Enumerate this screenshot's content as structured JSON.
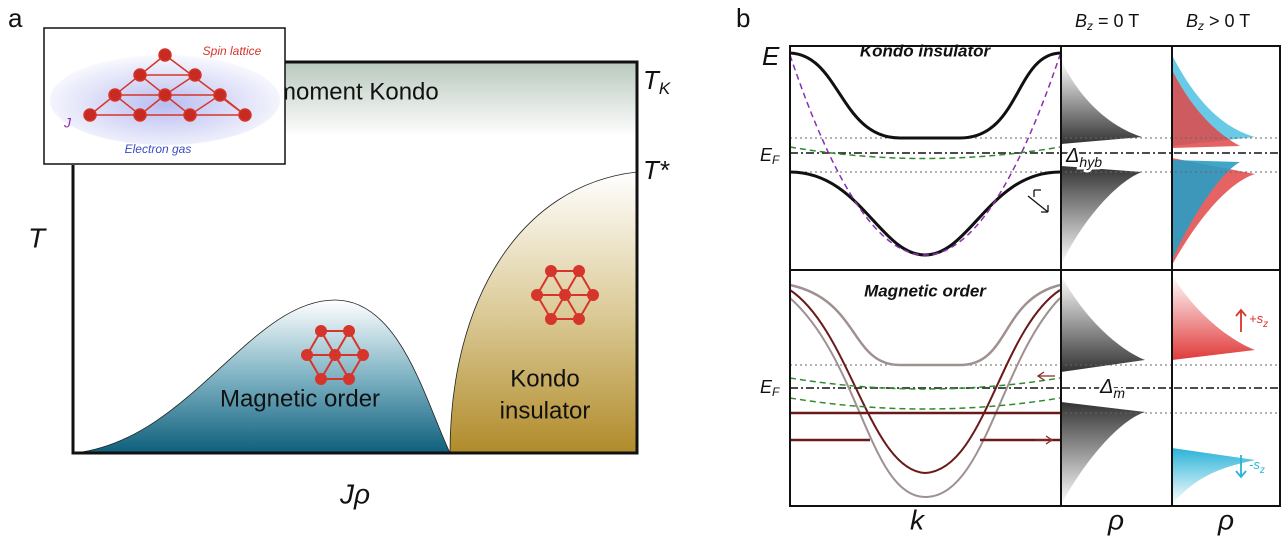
{
  "panel_a": {
    "label": "a",
    "inset": {
      "spin_lattice": "Spin lattice",
      "electron_gas": "Electron gas",
      "coupling": "J"
    },
    "region_top": "Single-moment Kondo",
    "region_magnetic": "Magnetic order",
    "region_kondo": [
      "Kondo",
      "insulator"
    ],
    "t_k": {
      "main": "T",
      "sub": "K"
    },
    "t_star": "T*",
    "y_axis": "T",
    "x_axis": "Jρ"
  },
  "panel_b": {
    "label": "b",
    "col_zero": {
      "main": "B",
      "sub": "z",
      "rest": " = 0 T"
    },
    "col_pos": {
      "main": "B",
      "sub": "z",
      "rest": " > 0 T"
    },
    "energy": "E",
    "top_title": "Kondo insulator",
    "top_ef": {
      "main": "E",
      "sub": "F"
    },
    "gap_hyb": {
      "main": "Δ",
      "sub": "hyb"
    },
    "bottom_title": "Magnetic order",
    "bottom_ef": {
      "main": "E",
      "sub": "F"
    },
    "gap_m": {
      "main": "Δ",
      "sub": "m"
    },
    "spin_up": {
      "main": "+s",
      "sub": "z"
    },
    "spin_down": {
      "main": "-s",
      "sub": "z"
    },
    "x_k": "k",
    "x_rho_zero": "ρ",
    "x_rho_pos": "ρ"
  }
}
